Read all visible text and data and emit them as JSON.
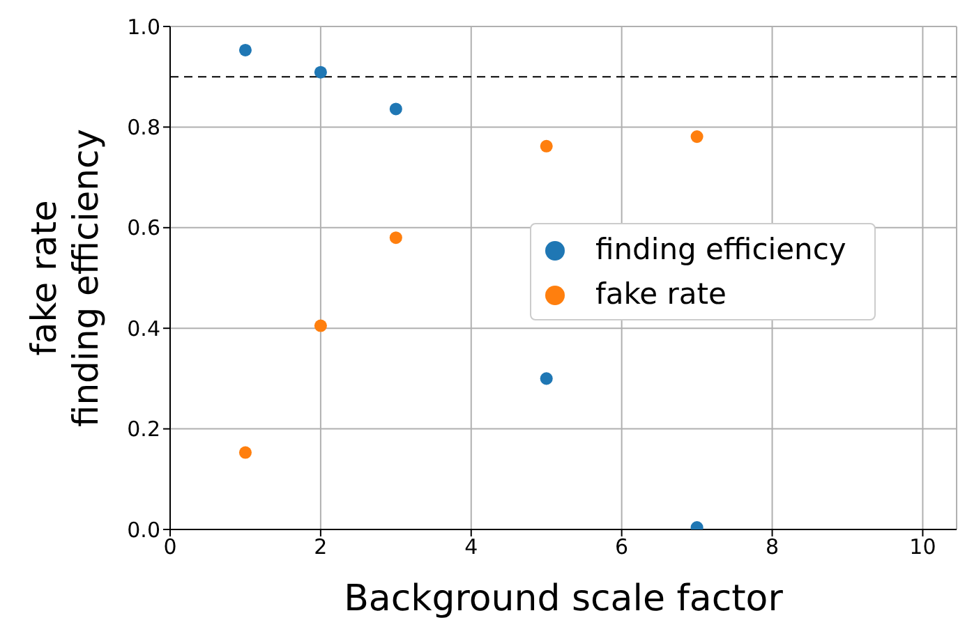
{
  "chart_data": {
    "type": "scatter",
    "xlabel": "Background scale factor",
    "ylabel": "fake rate\nfinding efficiency",
    "x": [
      1,
      2,
      3,
      5,
      7
    ],
    "series": [
      {
        "name": "finding efficiency",
        "color": "#1f77b4",
        "values": [
          0.953,
          0.909,
          0.836,
          0.3,
          0.004
        ]
      },
      {
        "name": "fake rate",
        "color": "#ff7f0e",
        "values": [
          0.153,
          0.405,
          0.58,
          0.762,
          0.781
        ]
      }
    ],
    "xlim": [
      0,
      10.45
    ],
    "xticks": [
      0,
      2,
      4,
      6,
      8,
      10
    ],
    "ylim": [
      0,
      1
    ],
    "yticks": [
      {
        "value": 0,
        "label": "0.0"
      },
      {
        "value": 0.2,
        "label": "0.2"
      },
      {
        "value": 0.4,
        "label": "0.4"
      },
      {
        "value": 0.6,
        "label": "0.6"
      },
      {
        "value": 0.8,
        "label": "0.8"
      },
      {
        "value": 1,
        "label": "1.0"
      }
    ],
    "ref_lines": [
      {
        "axis": "y",
        "value": 0.9,
        "color": "#000000",
        "line_style": "dashed"
      }
    ],
    "grid": true,
    "legend": "right",
    "marker": "circle"
  }
}
